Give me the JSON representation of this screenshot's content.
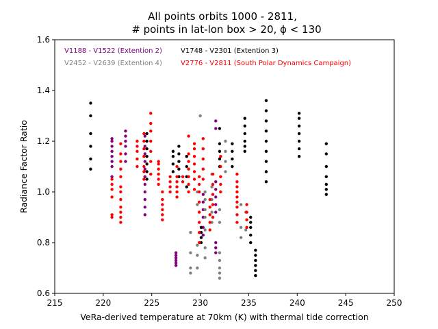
{
  "chart_data": {
    "type": "scatter",
    "title_lines": [
      "All points orbits 1000 - 2811,",
      "# points in lat-lon box > 20, ϕ < 130"
    ],
    "xlabel": "VeRa-derived temperature at 70km (K) with thermal tide correction",
    "ylabel": "Radiance Factor Ratio",
    "xlim": [
      215,
      250
    ],
    "ylim": [
      0.6,
      1.6
    ],
    "xticks": [
      215,
      220,
      225,
      230,
      235,
      240,
      245,
      250
    ],
    "yticks": [
      0.6,
      0.8,
      1.0,
      1.2,
      1.4,
      1.6
    ],
    "xtick_labels": [
      "215",
      "220",
      "225",
      "230",
      "235",
      "240",
      "245",
      "250"
    ],
    "ytick_labels": [
      "0.6",
      "0.8",
      "1.0",
      "1.2",
      "1.4",
      "1.6"
    ],
    "grid": false,
    "legend_position": "top-left",
    "series": [
      {
        "name": "V1188 - V1522 (Extention 2)",
        "color": "#800080",
        "groups": [
          {
            "x": 220.9,
            "y": [
              1.06,
              1.1,
              1.12,
              1.14,
              1.16,
              1.18,
              1.2,
              1.21
            ]
          },
          {
            "x": 222.3,
            "y": [
              1.12,
              1.15,
              1.18,
              1.2,
              1.22,
              1.24
            ]
          },
          {
            "x": 224.3,
            "y": [
              0.91,
              0.94,
              0.97,
              1.0,
              1.03,
              1.06,
              1.09,
              1.12,
              1.15,
              1.18,
              1.22
            ]
          },
          {
            "x": 227.5,
            "y": [
              0.71,
              0.72,
              0.73,
              0.74,
              0.75,
              0.76
            ]
          },
          {
            "x": 230.3,
            "y": [
              0.83,
              0.86,
              0.9,
              0.93,
              0.96,
              0.99
            ]
          },
          {
            "x": 231.6,
            "y": [
              0.76,
              0.78,
              0.8,
              0.92,
              0.95,
              0.98,
              1.01,
              1.04,
              1.25,
              1.28
            ]
          }
        ]
      },
      {
        "name": "V1748 - V2301 (Extention 3)",
        "color": "#000000",
        "groups": [
          {
            "x": 218.7,
            "y": [
              1.09,
              1.13,
              1.18,
              1.23,
              1.3,
              1.35
            ]
          },
          {
            "x": 224.5,
            "y": [
              1.05,
              1.08,
              1.11,
              1.14,
              1.17,
              1.2,
              1.23
            ]
          },
          {
            "x": 227.2,
            "y": [
              1.08,
              1.11,
              1.14,
              1.16
            ]
          },
          {
            "x": 227.8,
            "y": [
              1.06,
              1.09,
              1.12,
              1.15,
              1.18
            ]
          },
          {
            "x": 228.6,
            "y": [
              1.02,
              1.06,
              1.1,
              1.14
            ]
          },
          {
            "x": 230.1,
            "y": [
              0.8,
              0.82,
              0.84,
              0.86
            ]
          },
          {
            "x": 232.0,
            "y": [
              1.1,
              1.13,
              1.16,
              1.19,
              1.25
            ]
          },
          {
            "x": 233.3,
            "y": [
              1.1,
              1.13,
              1.16,
              1.19
            ]
          },
          {
            "x": 234.6,
            "y": [
              1.16,
              1.18,
              1.2,
              1.23,
              1.26,
              1.29
            ]
          },
          {
            "x": 235.2,
            "y": [
              0.8,
              0.83,
              0.86,
              0.88,
              0.9
            ]
          },
          {
            "x": 235.7,
            "y": [
              0.67,
              0.69,
              0.71,
              0.73,
              0.75,
              0.77
            ]
          },
          {
            "x": 236.8,
            "y": [
              1.04,
              1.08,
              1.12,
              1.16,
              1.2,
              1.24,
              1.28,
              1.32,
              1.36
            ]
          },
          {
            "x": 240.2,
            "y": [
              1.14,
              1.17,
              1.2,
              1.23,
              1.26,
              1.29,
              1.31
            ]
          },
          {
            "x": 243.0,
            "y": [
              0.99,
              1.01,
              1.03,
              1.06,
              1.1,
              1.15,
              1.19
            ]
          }
        ]
      },
      {
        "name": "V2452 - V2639 (Extention 4)",
        "color": "#808080",
        "groups": [
          {
            "x": 229.0,
            "y": [
              0.68,
              0.7,
              0.76,
              0.84
            ]
          },
          {
            "x": 229.7,
            "y": [
              0.7,
              0.75,
              0.79,
              0.95,
              1.0
            ]
          },
          {
            "x": 230.0,
            "y": [
              1.3
            ]
          },
          {
            "x": 230.5,
            "y": [
              0.74,
              0.78,
              0.85,
              0.9,
              0.93,
              0.97,
              1.0
            ]
          },
          {
            "x": 231.2,
            "y": [
              0.88,
              0.92,
              0.97,
              1.02,
              1.07
            ]
          },
          {
            "x": 232.0,
            "y": [
              0.66,
              0.68,
              0.7,
              0.73,
              0.76,
              0.88,
              0.93
            ]
          },
          {
            "x": 232.6,
            "y": [
              1.08,
              1.12,
              1.16,
              1.2
            ]
          },
          {
            "x": 234.2,
            "y": [
              0.82,
              0.86,
              0.95
            ]
          },
          {
            "x": 234.7,
            "y": [
              0.85,
              0.92
            ]
          }
        ]
      },
      {
        "name": "V2776 - V2811 (South Polar Dynamics Campaign)",
        "color": "#ff0000",
        "groups": [
          {
            "x": 220.9,
            "y": [
              0.9,
              0.91,
              0.98,
              1.01,
              1.03,
              1.05
            ]
          },
          {
            "x": 221.8,
            "y": [
              0.88,
              0.9,
              0.92,
              0.94,
              0.97,
              1.0,
              1.02,
              1.06,
              1.09,
              1.12,
              1.15,
              1.19
            ]
          },
          {
            "x": 223.5,
            "y": [
              1.1,
              1.13,
              1.16,
              1.18,
              1.2
            ]
          },
          {
            "x": 224.2,
            "y": [
              1.05,
              1.08,
              1.1,
              1.14,
              1.17,
              1.2,
              1.23
            ]
          },
          {
            "x": 224.9,
            "y": [
              1.07,
              1.12,
              1.16,
              1.2,
              1.24,
              1.27,
              1.31
            ]
          },
          {
            "x": 225.7,
            "y": [
              1.03,
              1.05,
              1.07,
              1.09,
              1.11,
              1.12
            ]
          },
          {
            "x": 226.1,
            "y": [
              0.89,
              0.91,
              0.93,
              0.95,
              0.97,
              1.0
            ]
          },
          {
            "x": 226.9,
            "y": [
              1.0,
              1.02,
              1.04,
              1.06
            ]
          },
          {
            "x": 227.6,
            "y": [
              0.98,
              1.0,
              1.02,
              1.04,
              1.06,
              1.1
            ]
          },
          {
            "x": 228.2,
            "y": [
              1.04,
              1.06
            ]
          },
          {
            "x": 228.8,
            "y": [
              1.0,
              1.03,
              1.06,
              1.09,
              1.12,
              1.15,
              1.22
            ]
          },
          {
            "x": 229.4,
            "y": [
              1.01,
              1.05,
              1.08,
              1.11,
              1.14,
              1.17,
              1.19
            ]
          },
          {
            "x": 229.9,
            "y": [
              0.8,
              0.84,
              0.88,
              0.92,
              0.96,
              1.0,
              1.03,
              1.06
            ]
          },
          {
            "x": 230.3,
            "y": [
              1.05,
              1.09,
              1.13,
              1.17,
              1.21
            ]
          },
          {
            "x": 231.0,
            "y": [
              0.85,
              0.88,
              0.91,
              0.94,
              0.97
            ]
          },
          {
            "x": 231.3,
            "y": [
              0.9,
              0.95,
              0.99,
              1.03,
              1.07
            ]
          },
          {
            "x": 232.1,
            "y": [
              1.0,
              1.03,
              1.06,
              1.1,
              1.14
            ]
          },
          {
            "x": 233.8,
            "y": [
              0.88,
              0.91,
              0.94,
              0.96,
              0.98,
              1.0,
              1.02,
              1.04,
              1.07
            ]
          },
          {
            "x": 234.8,
            "y": [
              0.86,
              0.89,
              0.92,
              0.95
            ]
          }
        ]
      }
    ]
  }
}
